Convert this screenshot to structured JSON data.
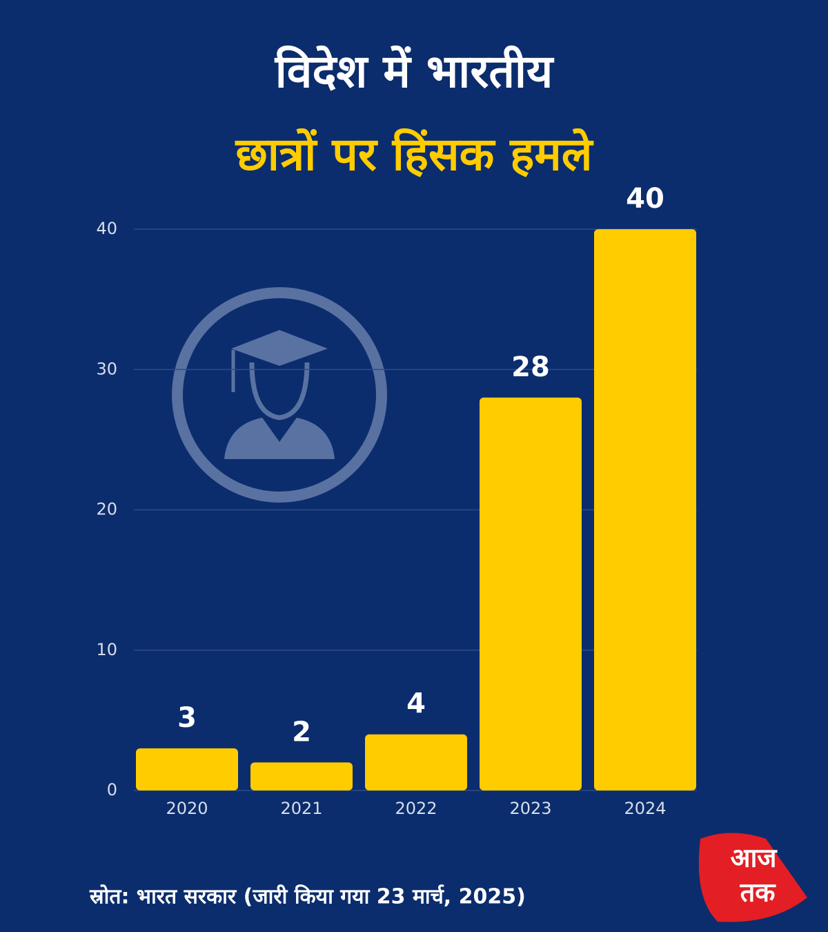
{
  "chart_data": {
    "type": "bar",
    "title": "विदेश में भारतीय",
    "subtitle": "छात्रों पर हिंसक हमले",
    "categories": [
      "2020",
      "2021",
      "2022",
      "2023",
      "2024"
    ],
    "values": [
      3,
      2,
      4,
      28,
      40
    ],
    "color": "#ffcc00",
    "ylim": [
      0,
      40
    ],
    "yticks": [
      0,
      10,
      20,
      30,
      40
    ],
    "grid": true,
    "source": "स्रोत: भारत सरकार (जारी किया गया 23 मार्च, 2025)"
  },
  "logo": {
    "top": "आज",
    "bottom": "तक"
  }
}
